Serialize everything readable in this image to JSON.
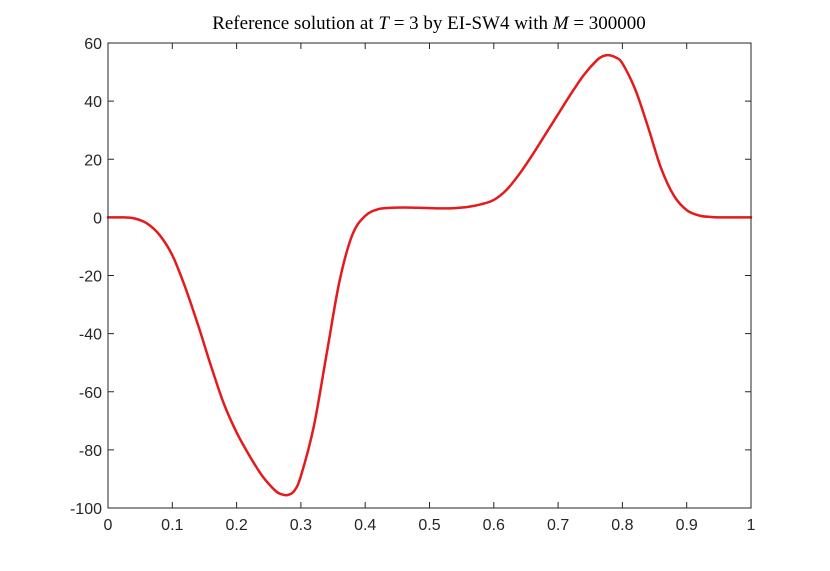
{
  "chart_data": {
    "type": "line",
    "title": "Reference solution at T = 3 by EI-SW4 with M = 300000",
    "title_parts": {
      "prefix": "Reference solution at ",
      "var_t": "T",
      "mid1": " = 3 by EI-SW4 with ",
      "var_m": "M",
      "mid2": " = 300000"
    },
    "xlabel": "",
    "ylabel": "",
    "xlim": [
      0,
      1
    ],
    "ylim": [
      -100,
      60
    ],
    "x_ticks": [
      0,
      0.1,
      0.2,
      0.3,
      0.4,
      0.5,
      0.6,
      0.7,
      0.8,
      0.9,
      1
    ],
    "x_tick_labels": [
      "0",
      "0.1",
      "0.2",
      "0.3",
      "0.4",
      "0.5",
      "0.6",
      "0.7",
      "0.8",
      "0.9",
      "1"
    ],
    "y_ticks": [
      -100,
      -80,
      -60,
      -40,
      -20,
      0,
      20,
      40,
      60
    ],
    "y_tick_labels": [
      "-100",
      "-80",
      "-60",
      "-40",
      "-20",
      "0",
      "20",
      "40",
      "60"
    ],
    "grid": false,
    "legend": "none",
    "series": [
      {
        "color": "#e41a1c",
        "x": [
          0,
          0.02,
          0.04,
          0.06,
          0.08,
          0.1,
          0.12,
          0.14,
          0.16,
          0.18,
          0.2,
          0.22,
          0.24,
          0.26,
          0.27,
          0.28,
          0.29,
          0.3,
          0.32,
          0.34,
          0.36,
          0.38,
          0.4,
          0.42,
          0.44,
          0.46,
          0.48,
          0.5,
          0.52,
          0.54,
          0.56,
          0.58,
          0.6,
          0.62,
          0.64,
          0.66,
          0.68,
          0.7,
          0.72,
          0.74,
          0.76,
          0.77,
          0.78,
          0.79,
          0.8,
          0.82,
          0.84,
          0.86,
          0.88,
          0.9,
          0.92,
          0.94,
          0.96,
          0.98,
          1.0
        ],
        "y": [
          0,
          0,
          -0.3,
          -2,
          -6,
          -13,
          -24,
          -37,
          -51,
          -64,
          -74,
          -82,
          -89,
          -94,
          -95.3,
          -95.5,
          -94,
          -89,
          -72,
          -47,
          -22,
          -6,
          0.5,
          2.8,
          3.3,
          3.4,
          3.3,
          3.2,
          3.1,
          3.2,
          3.6,
          4.5,
          6,
          9.5,
          15,
          21.5,
          28.5,
          35.5,
          42.5,
          49,
          54,
          55.5,
          55.8,
          55,
          53,
          44,
          31,
          17,
          7.5,
          2.5,
          0.6,
          0.1,
          0,
          0,
          0
        ]
      }
    ]
  }
}
